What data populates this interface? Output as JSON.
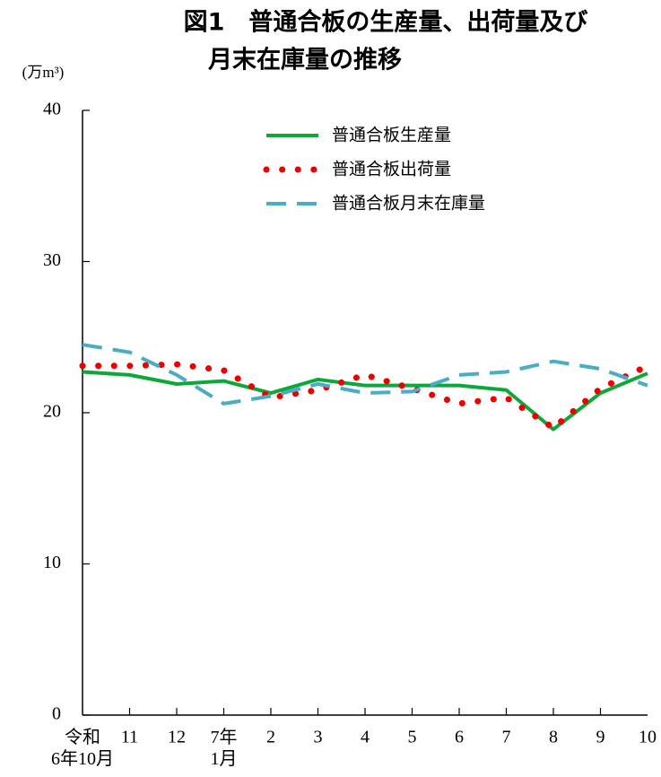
{
  "chart_data": {
    "type": "line",
    "title_lines": [
      "図1　普通合板の生産量、出荷量及び",
      "月末在庫量の推移"
    ],
    "y_label": "(万m³)",
    "categories": [
      [
        "令和",
        "6年10月"
      ],
      "11",
      "12",
      [
        "7年",
        "1月"
      ],
      "2",
      "3",
      "4",
      "5",
      "6",
      "7",
      "8",
      "9",
      "10"
    ],
    "series": [
      {
        "name": "普通合板生産量",
        "color": "#0ea83a",
        "style": "solid",
        "values": [
          22.7,
          22.5,
          21.9,
          22.1,
          21.3,
          22.2,
          21.8,
          21.8,
          21.8,
          21.5,
          18.9,
          21.3,
          22.6
        ]
      },
      {
        "name": "普通合板出荷量",
        "color": "#ee0000",
        "style": "dotted",
        "values": [
          23.1,
          23.1,
          23.2,
          22.8,
          21.0,
          21.5,
          22.5,
          21.6,
          20.6,
          21.0,
          19.0,
          21.6,
          23.1
        ]
      },
      {
        "name": "普通合板月末在庫量",
        "color": "#4bacc6",
        "style": "dashed",
        "values": [
          24.5,
          24.0,
          22.5,
          20.6,
          21.1,
          21.9,
          21.3,
          21.4,
          22.5,
          22.7,
          23.4,
          22.9,
          21.8
        ]
      }
    ],
    "ylim": [
      0,
      40
    ],
    "yticks": [
      0,
      10,
      20,
      30,
      40
    ],
    "grid": false
  }
}
